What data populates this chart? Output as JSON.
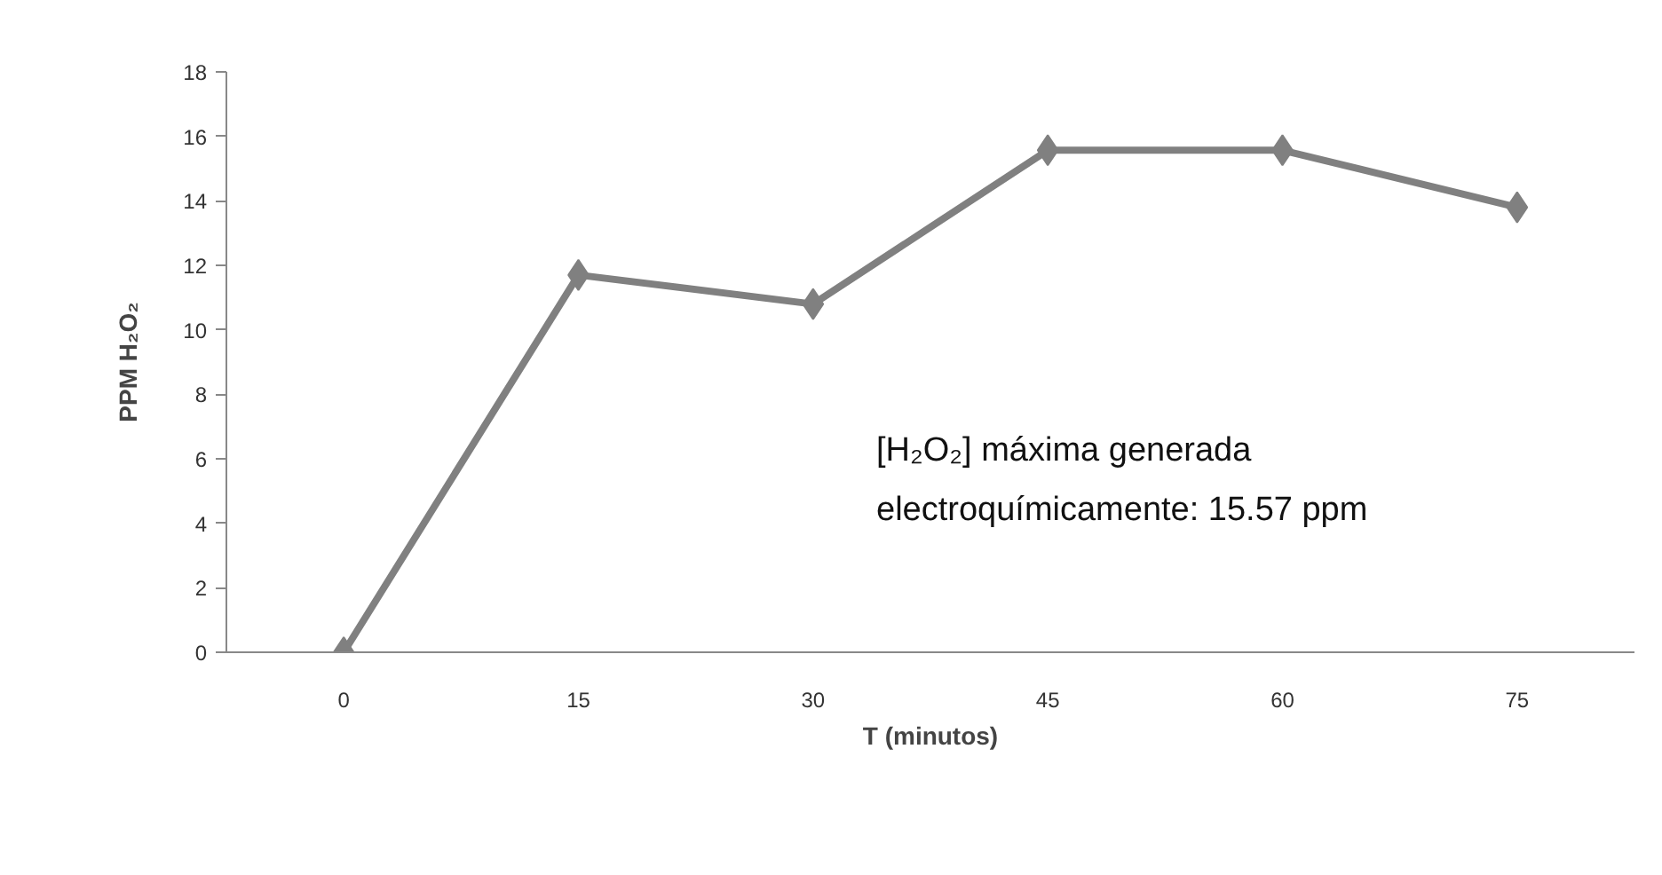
{
  "chart_data": {
    "type": "line",
    "xlabel": "T (minutos)",
    "ylabel": "PPM H₂O₂",
    "categories": [
      "0",
      "15",
      "30",
      "45",
      "60",
      "75"
    ],
    "series": [
      {
        "color": "#808080",
        "values": [
          0,
          11.7,
          10.8,
          15.57,
          15.57,
          13.8
        ]
      }
    ],
    "ylim": [
      0,
      18
    ],
    "yticks": [
      0,
      2,
      4,
      6,
      8,
      10,
      12,
      14,
      16,
      18
    ],
    "marker": "diamond",
    "line_style": "solid",
    "grid": false,
    "annotations": [
      "[H₂O₂] máxima  generada\nelectroquímicamente: 15.57 ppm"
    ]
  }
}
